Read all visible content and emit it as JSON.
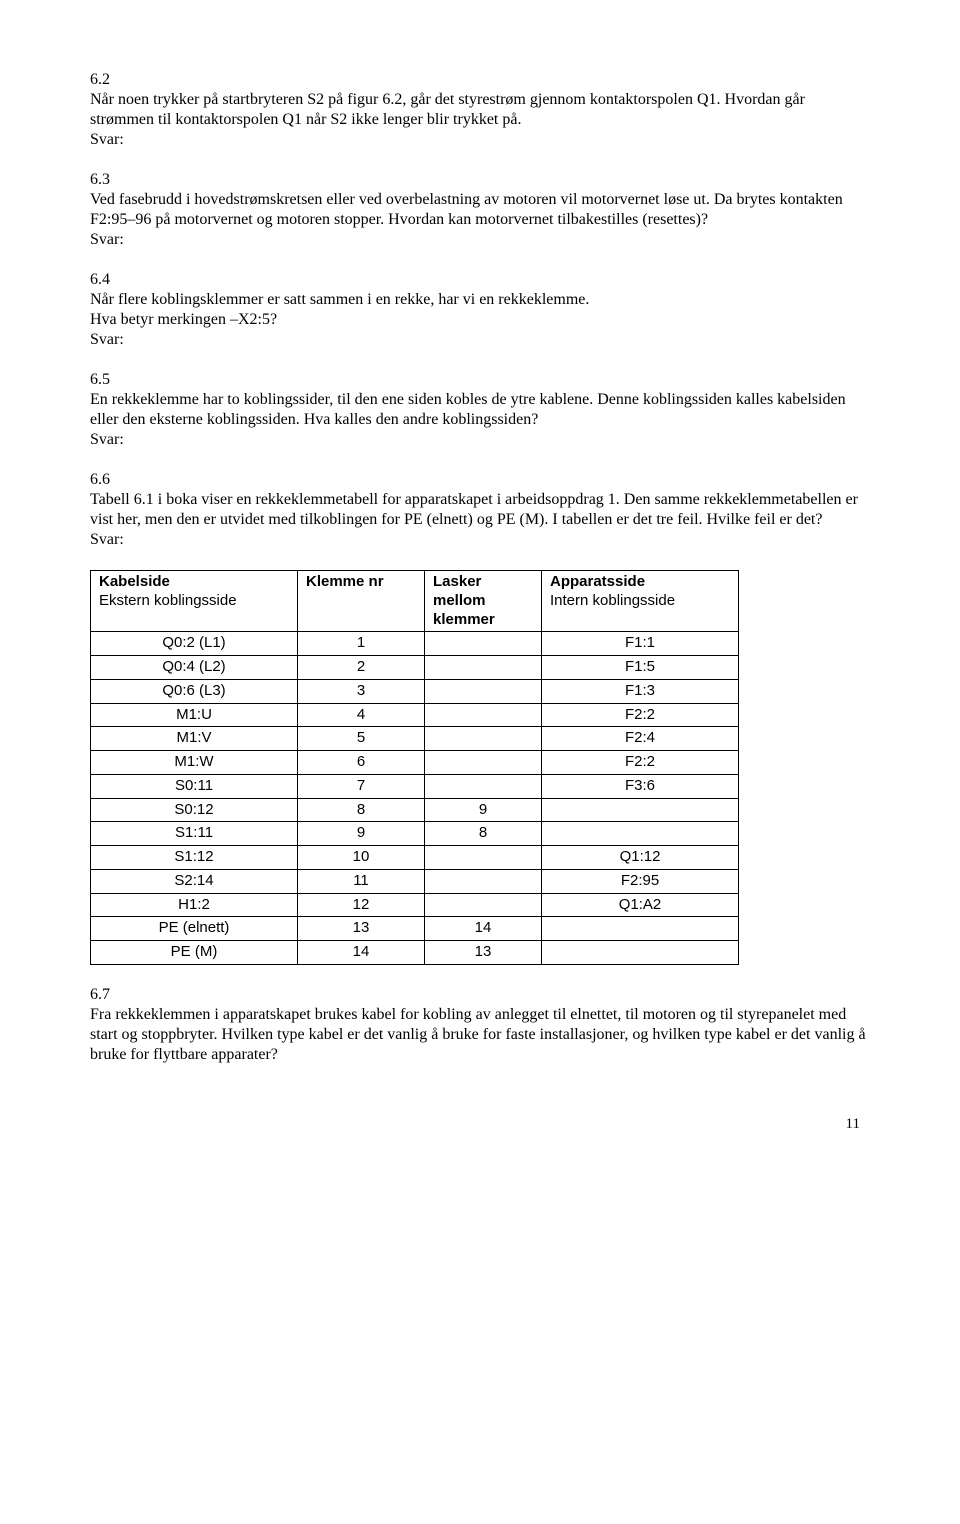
{
  "q62": {
    "num": "6.2",
    "text": "Når noen trykker på startbryteren S2 på figur 6.2, går det styrestrøm gjennom kontaktorspolen Q1. Hvordan går strømmen til kontaktorspolen Q1 når S2 ikke lenger blir trykket på.",
    "svar": "Svar:"
  },
  "q63": {
    "num": "6.3",
    "text": "Ved fasebrudd i hovedstrømskretsen eller ved overbelastning av motoren vil motorvernet løse ut. Da brytes kontakten F2:95–96 på motorvernet og motoren stopper. Hvordan kan motorvernet tilbakestilles (resettes)?",
    "svar": "Svar:"
  },
  "q64": {
    "num": "6.4",
    "text": "Når flere koblingsklemmer er satt sammen i en rekke, har vi en rekkeklemme.",
    "line2": "Hva betyr merkingen –X2:5?",
    "svar": "Svar:"
  },
  "q65": {
    "num": "6.5",
    "text": "En rekkeklemme har to koblingssider, til den ene siden kobles de ytre kablene. Denne koblingssiden kalles kabelsiden eller den eksterne koblingssiden. Hva kalles den andre koblingssiden?",
    "svar": "Svar:"
  },
  "q66": {
    "num": "6.6",
    "text": "Tabell 6.1 i boka viser en rekkeklemmetabell for apparatskapet i arbeidsoppdrag 1. Den samme rekkeklemmetabellen er vist her, men den er utvidet med tilkoblingen for PE (elnett) og PE (M). I tabellen er det tre feil. Hvilke feil er det?",
    "svar": "Svar:"
  },
  "table": {
    "head": {
      "kabel": "Kabelside",
      "kabel_sub": "Ekstern koblingsside",
      "klemme": "Klemme nr",
      "lasker": "Lasker mellom klemmer",
      "apparat": "Apparatsside",
      "apparat_sub": "Intern koblingsside"
    },
    "rows": [
      {
        "kabel": "Q0:2 (L1)",
        "klemme": "1",
        "lasker": "",
        "apparat": "F1:1"
      },
      {
        "kabel": "Q0:4 (L2)",
        "klemme": "2",
        "lasker": "",
        "apparat": "F1:5"
      },
      {
        "kabel": "Q0:6 (L3)",
        "klemme": "3",
        "lasker": "",
        "apparat": "F1:3"
      },
      {
        "kabel": "M1:U",
        "klemme": "4",
        "lasker": "",
        "apparat": "F2:2"
      },
      {
        "kabel": "M1:V",
        "klemme": "5",
        "lasker": "",
        "apparat": "F2:4"
      },
      {
        "kabel": "M1:W",
        "klemme": "6",
        "lasker": "",
        "apparat": "F2:2"
      },
      {
        "kabel": "S0:11",
        "klemme": "7",
        "lasker": "",
        "apparat": "F3:6"
      },
      {
        "kabel": "S0:12",
        "klemme": "8",
        "lasker": "9",
        "apparat": ""
      },
      {
        "kabel": "S1:11",
        "klemme": "9",
        "lasker": "8",
        "apparat": ""
      },
      {
        "kabel": "S1:12",
        "klemme": "10",
        "lasker": "",
        "apparat": "Q1:12"
      },
      {
        "kabel": "S2:14",
        "klemme": "11",
        "lasker": "",
        "apparat": "F2:95"
      },
      {
        "kabel": "H1:2",
        "klemme": "12",
        "lasker": "",
        "apparat": "Q1:A2"
      },
      {
        "kabel": "PE (elnett)",
        "klemme": "13",
        "lasker": "14",
        "apparat": ""
      },
      {
        "kabel": "PE (M)",
        "klemme": "14",
        "lasker": "13",
        "apparat": ""
      }
    ]
  },
  "q67": {
    "num": "6.7",
    "text": "Fra rekkeklemmen i apparatskapet brukes kabel for kobling av anlegget til elnettet, til motoren og til styrepanelet med start og stoppbryter. Hvilken type kabel er det vanlig å bruke for faste installasjoner, og hvilken type kabel er det vanlig å bruke for flyttbare apparater?"
  },
  "page_number": "11"
}
